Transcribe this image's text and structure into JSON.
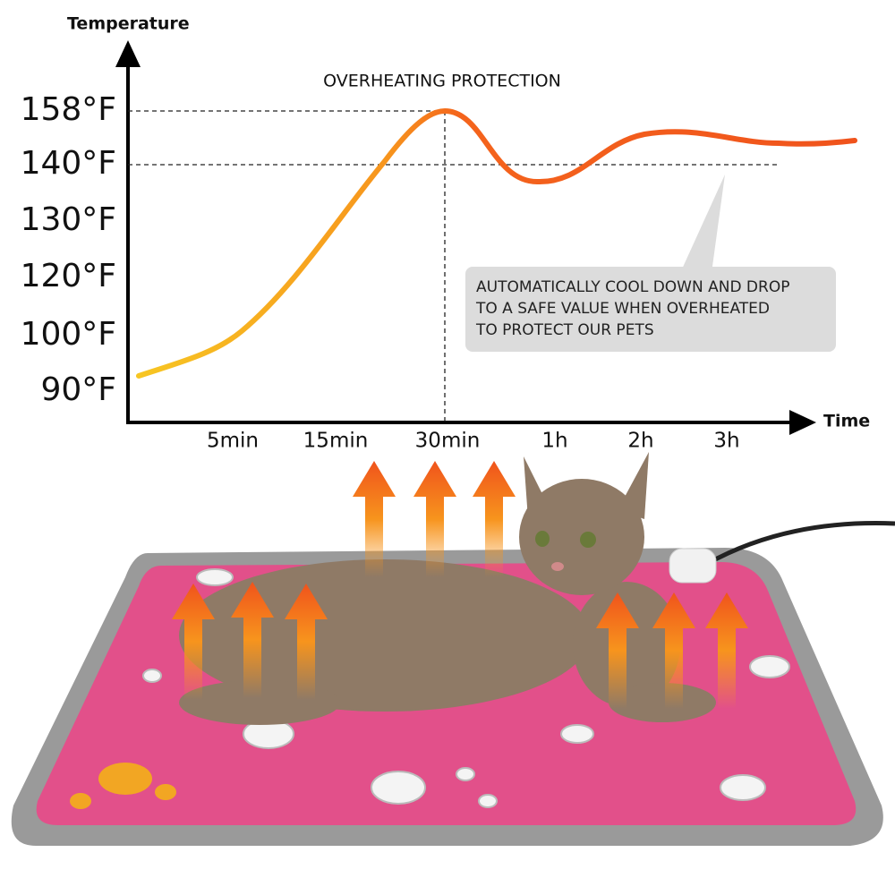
{
  "chart": {
    "y_axis_label": "Temperature",
    "x_axis_label": "Time",
    "y_labels": [
      "158°F",
      "140°F",
      "130°F",
      "120°F",
      "100°F",
      "90°F"
    ],
    "x_labels": [
      "5min",
      "15min",
      "30min",
      "1h",
      "2h",
      "3h"
    ],
    "peak_annotation": "OVERHEATING PROTECTION",
    "callout": [
      "AUTOMATICALLY COOL DOWN AND DROP",
      "TO A SAFE VALUE WHEN  OVERHEATED",
      "TO PROTECT OUR PETS"
    ]
  }
}
